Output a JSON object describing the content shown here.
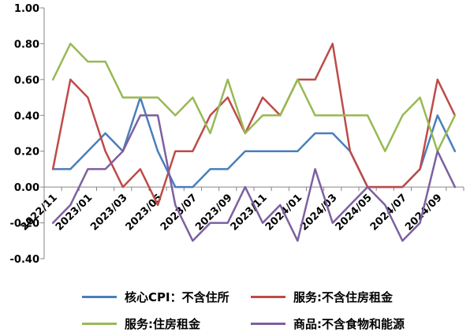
{
  "chart_data": {
    "type": "line",
    "x": [
      "2022/11",
      "2022/12",
      "2023/01",
      "2023/02",
      "2023/03",
      "2023/04",
      "2023/05",
      "2023/06",
      "2023/07",
      "2023/08",
      "2023/09",
      "2023/10",
      "2023/11",
      "2023/12",
      "2024/01",
      "2024/02",
      "2024/03",
      "2024/04",
      "2024/05",
      "2024/06",
      "2024/07",
      "2024/08",
      "2024/09",
      "2024/10"
    ],
    "tick_labels": [
      "2022/11",
      "2023/01",
      "2023/03",
      "2023/05",
      "2023/07",
      "2023/09",
      "2023/11",
      "2024/01",
      "2024/03",
      "2024/05",
      "2024/07",
      "2024/09"
    ],
    "ylim": [
      -0.4,
      1.0
    ],
    "yticks": [
      "1.00",
      "0.80",
      "0.60",
      "0.40",
      "0.20",
      "0.00",
      "-0.20",
      "-0.40"
    ],
    "grid": false,
    "legend_position": "bottom",
    "series": [
      {
        "name": "核心CPI：不含住所",
        "color": "#4a7ebb",
        "values": [
          0.1,
          0.1,
          0.2,
          0.3,
          0.2,
          0.5,
          0.2,
          0.0,
          0.0,
          0.1,
          0.1,
          0.2,
          0.2,
          0.2,
          0.2,
          0.3,
          0.3,
          0.2,
          0.0,
          0.0,
          0.0,
          0.1,
          0.4,
          0.2
        ]
      },
      {
        "name": "服务:不含住房租金",
        "color": "#be4b48",
        "values": [
          0.1,
          0.6,
          0.5,
          0.2,
          0.0,
          0.1,
          -0.1,
          0.2,
          0.2,
          0.4,
          0.5,
          0.3,
          0.5,
          0.4,
          0.6,
          0.6,
          0.8,
          0.2,
          0.0,
          0.0,
          0.0,
          0.1,
          0.6,
          0.4
        ]
      },
      {
        "name": "服务:住房租金",
        "color": "#98b954",
        "values": [
          0.6,
          0.8,
          0.7,
          0.7,
          0.5,
          0.5,
          0.5,
          0.4,
          0.5,
          0.3,
          0.6,
          0.3,
          0.4,
          0.4,
          0.6,
          0.4,
          0.4,
          0.4,
          0.4,
          0.2,
          0.4,
          0.5,
          0.2,
          0.4
        ]
      },
      {
        "name": "商品:不含食物和能源",
        "color": "#7d60a0",
        "values": [
          -0.2,
          -0.1,
          0.1,
          0.1,
          0.2,
          0.4,
          0.4,
          -0.1,
          -0.3,
          -0.2,
          -0.2,
          0.0,
          -0.2,
          -0.1,
          -0.3,
          0.1,
          -0.2,
          -0.1,
          0.0,
          -0.1,
          -0.3,
          -0.2,
          0.2,
          0.0
        ]
      }
    ]
  }
}
